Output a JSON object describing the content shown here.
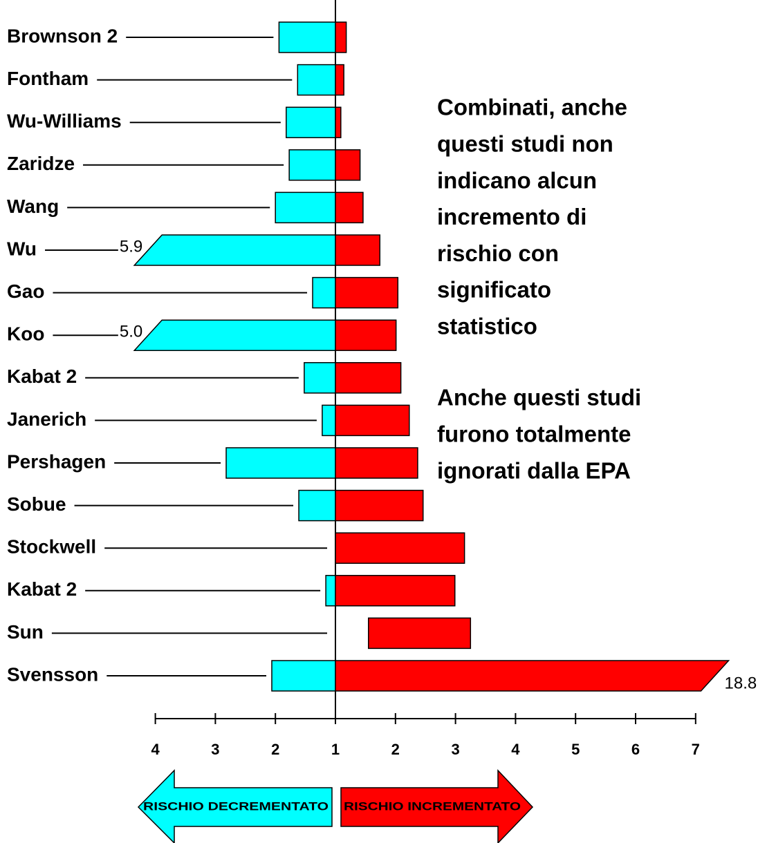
{
  "chart_data": {
    "type": "diverging_interval",
    "categories": [
      "Brownson 2",
      "Fontham",
      "Wu-Williams",
      "Zaridze",
      "Wang",
      "Wu",
      "Gao",
      "Koo",
      "Kabat 2",
      "Janerich",
      "Pershagen",
      "Sobue",
      "Stockwell",
      "Kabat 2",
      "Sun",
      "Svensson"
    ],
    "series": [
      {
        "color": "#00ffff",
        "side": "left",
        "values": [
          1.94,
          1.63,
          1.82,
          1.77,
          2.0,
          5.9,
          1.38,
          5.0,
          1.52,
          1.22,
          2.82,
          1.61,
          null,
          1.16,
          null,
          2.06
        ],
        "value_labels": [
          null,
          null,
          null,
          null,
          null,
          "5.9",
          null,
          "5.0",
          null,
          null,
          null,
          null,
          null,
          null,
          null,
          null
        ]
      },
      {
        "color": "#ff0000",
        "side": "right",
        "start": [
          1,
          1,
          1,
          1,
          1,
          1,
          1,
          1,
          1,
          1,
          1,
          1,
          1,
          1,
          1.55,
          1
        ],
        "values": [
          1.18,
          1.14,
          1.09,
          1.41,
          1.46,
          1.74,
          2.04,
          2.01,
          2.09,
          2.23,
          2.37,
          2.46,
          3.15,
          2.99,
          3.25,
          18.8
        ],
        "value_labels": [
          null,
          null,
          null,
          null,
          null,
          null,
          null,
          null,
          null,
          null,
          null,
          null,
          null,
          null,
          null,
          "18.8"
        ]
      }
    ],
    "left_lim": [
      1,
      4.35
    ],
    "left_ticks": [
      4,
      3,
      2
    ],
    "right_lim": [
      1,
      7.55
    ],
    "right_ticks": [
      1,
      2,
      3,
      4,
      5,
      6,
      7
    ],
    "annotations": [
      [
        "Combinati, anche",
        "questi studi non",
        "indicano alcun",
        "incremento di",
        "rischio con",
        "significato",
        "statistico"
      ],
      [
        "Anche questi studi",
        "furono totalmente",
        "ignorati dalla EPA"
      ]
    ],
    "arrows": [
      {
        "label": "RISCHIO DECREMENTATO",
        "color": "#00ffff",
        "direction": "left"
      },
      {
        "label": "RISCHIO INCREMENTATO",
        "color": "#ff0000",
        "direction": "right"
      }
    ]
  }
}
